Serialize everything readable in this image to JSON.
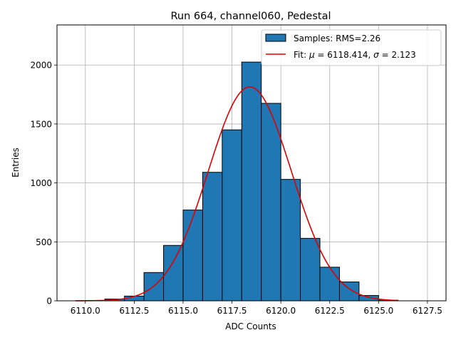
{
  "chart_data": {
    "type": "histogram",
    "title": "Run 664, channel060, Pedestal",
    "xlabel": "ADC Counts",
    "ylabel": "Entries",
    "xlim": [
      6108.55,
      6128.45
    ],
    "ylim": [
      0,
      2340
    ],
    "xticks": [
      "6110.0",
      "6112.5",
      "6115.0",
      "6117.5",
      "6120.0",
      "6122.5",
      "6125.0",
      "6127.5"
    ],
    "xtick_values": [
      6110.0,
      6112.5,
      6115.0,
      6117.5,
      6120.0,
      6122.5,
      6125.0,
      6127.5
    ],
    "yticks": [
      "0",
      "500",
      "1000",
      "1500",
      "2000"
    ],
    "ytick_values": [
      0,
      500,
      1000,
      1500,
      2000
    ],
    "grid": true,
    "legend_position": "top-right",
    "bar_color": "#1f77b4",
    "fit_color": "#e00000",
    "bins": [
      {
        "x0": 6110.0,
        "x1": 6111.0,
        "count": 2
      },
      {
        "x0": 6111.0,
        "x1": 6112.0,
        "count": 15
      },
      {
        "x0": 6112.0,
        "x1": 6113.0,
        "count": 40
      },
      {
        "x0": 6113.0,
        "x1": 6114.0,
        "count": 240
      },
      {
        "x0": 6114.0,
        "x1": 6115.0,
        "count": 470
      },
      {
        "x0": 6115.0,
        "x1": 6116.0,
        "count": 770
      },
      {
        "x0": 6116.0,
        "x1": 6117.0,
        "count": 1090
      },
      {
        "x0": 6117.0,
        "x1": 6118.0,
        "count": 1450
      },
      {
        "x0": 6118.0,
        "x1": 6119.0,
        "count": 2025
      },
      {
        "x0": 6119.0,
        "x1": 6120.0,
        "count": 1675
      },
      {
        "x0": 6120.0,
        "x1": 6121.0,
        "count": 1030
      },
      {
        "x0": 6121.0,
        "x1": 6122.0,
        "count": 530
      },
      {
        "x0": 6122.0,
        "x1": 6123.0,
        "count": 285
      },
      {
        "x0": 6123.0,
        "x1": 6124.0,
        "count": 160
      },
      {
        "x0": 6124.0,
        "x1": 6125.0,
        "count": 45
      },
      {
        "x0": 6125.0,
        "x1": 6126.0,
        "count": 5
      }
    ],
    "fit": {
      "type": "gaussian",
      "mu": 6118.414,
      "sigma": 2.123,
      "amplitude": 1815,
      "x_range": [
        6109.5,
        6126.0
      ]
    },
    "legend": [
      {
        "label": "Samples: RMS=2.26",
        "kind": "patch"
      },
      {
        "label_parts": [
          "Fit: ",
          "μ",
          " = 6118.414, ",
          "σ",
          " = 2.123"
        ],
        "kind": "line"
      }
    ]
  }
}
